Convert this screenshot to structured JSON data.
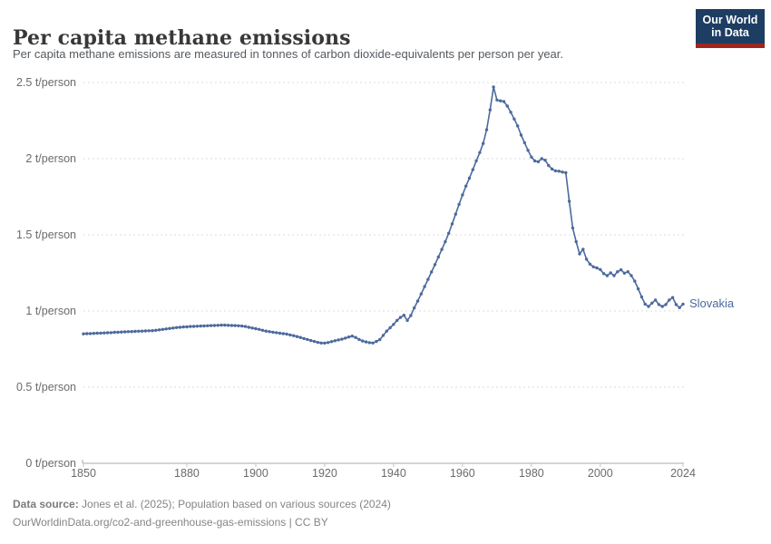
{
  "header": {
    "title": "Per capita methane emissions",
    "subtitle": "Per capita methane emissions are measured in tonnes of carbon dioxide-equivalents per person per year.",
    "logo": {
      "line1": "Our World",
      "line2": "in Data",
      "bg_color": "#1d3d63",
      "bar_color": "#a0261d"
    }
  },
  "chart_data": {
    "type": "line",
    "title": "Per capita methane emissions",
    "unit": "t/person",
    "xlabel": "",
    "ylabel": "",
    "xlim": [
      1850,
      2024
    ],
    "ylim": [
      0,
      2.5
    ],
    "grid": "horizontal-dashed",
    "xticks": [
      1850,
      1880,
      1900,
      1920,
      1940,
      1960,
      1980,
      2000,
      2024
    ],
    "yticks": [
      0,
      0.5,
      1,
      1.5,
      2,
      2.5
    ],
    "ytick_labels": [
      "0 t/person",
      "0.5 t/person",
      "1 t/person",
      "1.5 t/person",
      "2 t/person",
      "2.5 t/person"
    ],
    "legend_position": "end-of-line",
    "series": [
      {
        "name": "Slovakia",
        "color": "#4C6A9C",
        "year_start": 1850,
        "year_end": 2024,
        "year_step": 1,
        "values": [
          0.85,
          0.851,
          0.852,
          0.853,
          0.854,
          0.855,
          0.856,
          0.857,
          0.858,
          0.86,
          0.861,
          0.862,
          0.863,
          0.864,
          0.865,
          0.866,
          0.867,
          0.868,
          0.869,
          0.87,
          0.871,
          0.873,
          0.876,
          0.879,
          0.882,
          0.885,
          0.888,
          0.891,
          0.893,
          0.895,
          0.896,
          0.898,
          0.899,
          0.9,
          0.901,
          0.902,
          0.903,
          0.904,
          0.905,
          0.906,
          0.907,
          0.907,
          0.906,
          0.905,
          0.904,
          0.903,
          0.901,
          0.898,
          0.893,
          0.888,
          0.884,
          0.879,
          0.873,
          0.868,
          0.864,
          0.861,
          0.858,
          0.854,
          0.851,
          0.848,
          0.843,
          0.838,
          0.832,
          0.826,
          0.819,
          0.813,
          0.806,
          0.8,
          0.794,
          0.79,
          0.789,
          0.793,
          0.799,
          0.805,
          0.81,
          0.815,
          0.822,
          0.829,
          0.835,
          0.826,
          0.813,
          0.803,
          0.797,
          0.792,
          0.79,
          0.8,
          0.812,
          0.84,
          0.868,
          0.89,
          0.912,
          0.938,
          0.958,
          0.972,
          0.938,
          0.97,
          1.02,
          1.065,
          1.112,
          1.16,
          1.208,
          1.256,
          1.304,
          1.354,
          1.404,
          1.455,
          1.51,
          1.572,
          1.636,
          1.7,
          1.762,
          1.82,
          1.872,
          1.928,
          1.986,
          2.04,
          2.1,
          2.19,
          2.32,
          2.47,
          2.385,
          2.38,
          2.375,
          2.345,
          2.305,
          2.26,
          2.215,
          2.155,
          2.105,
          2.055,
          2.01,
          1.985,
          1.98,
          2.0,
          1.99,
          1.955,
          1.932,
          1.92,
          1.918,
          1.912,
          1.908,
          1.72,
          1.545,
          1.455,
          1.375,
          1.405,
          1.34,
          1.308,
          1.29,
          1.283,
          1.272,
          1.245,
          1.232,
          1.25,
          1.232,
          1.258,
          1.27,
          1.248,
          1.258,
          1.232,
          1.196,
          1.145,
          1.092,
          1.045,
          1.03,
          1.052,
          1.072,
          1.042,
          1.03,
          1.042,
          1.072,
          1.088,
          1.042,
          1.022,
          1.045
        ]
      }
    ]
  },
  "footer": {
    "source_label": "Data source:",
    "source_text": " Jones et al. (2025); Population based on various sources (2024)",
    "url_line": "OurWorldinData.org/co2-and-greenhouse-gas-emissions | CC BY"
  }
}
